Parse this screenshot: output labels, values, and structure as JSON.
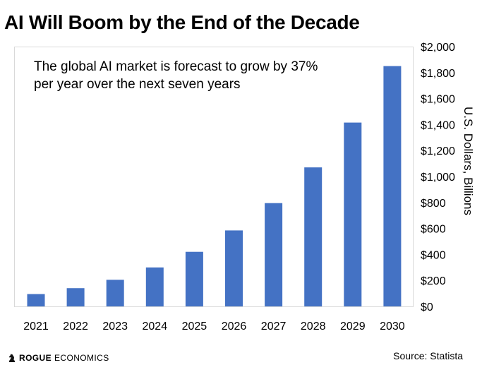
{
  "chart_data": {
    "type": "bar",
    "title": "AI Will Boom by the End of the Decade",
    "annotation": "The global AI market is forecast to grow by 37% per year over the next seven years",
    "categories": [
      "2021",
      "2022",
      "2023",
      "2024",
      "2025",
      "2026",
      "2027",
      "2028",
      "2029",
      "2030"
    ],
    "values": [
      95,
      140,
      205,
      300,
      420,
      585,
      795,
      1070,
      1415,
      1850
    ],
    "ylabel": "U.S. Dollars, Billions",
    "ylim": [
      0,
      2000
    ],
    "yticks": [
      0,
      200,
      400,
      600,
      800,
      1000,
      1200,
      1400,
      1600,
      1800,
      2000
    ],
    "ytick_labels": [
      "$0",
      "$200",
      "$400",
      "$600",
      "$800",
      "$1,000",
      "$1,200",
      "$1,400",
      "$1,600",
      "$1,800",
      "$2,000"
    ],
    "y_axis_position": "right",
    "grid": false,
    "bar_color": "#4472C4"
  },
  "footer": {
    "brand_strong": "ROGUE",
    "brand_light": "ECONOMICS",
    "source": "Source: Statista"
  }
}
